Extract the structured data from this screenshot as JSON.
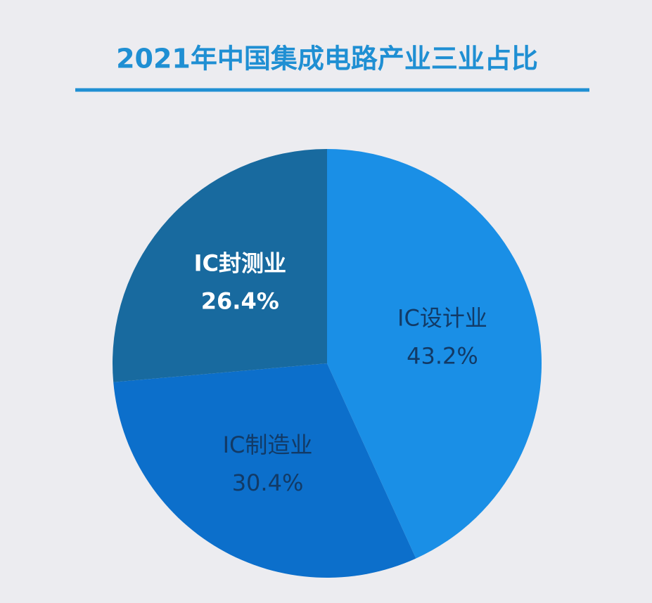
{
  "chart_data": {
    "type": "pie",
    "title": "2021年中国集成电路产业三业占比",
    "categories": [
      "IC设计业",
      "IC制造业",
      "IC封测业"
    ],
    "values": [
      43.2,
      30.4,
      26.4
    ],
    "value_labels": [
      "43.2%",
      "30.4%",
      "26.4%"
    ],
    "colors": [
      "#1a8fe6",
      "#0c6fcb",
      "#186a9f"
    ],
    "label_colors": [
      "#123a66",
      "#123a66",
      "#ffffff"
    ]
  }
}
